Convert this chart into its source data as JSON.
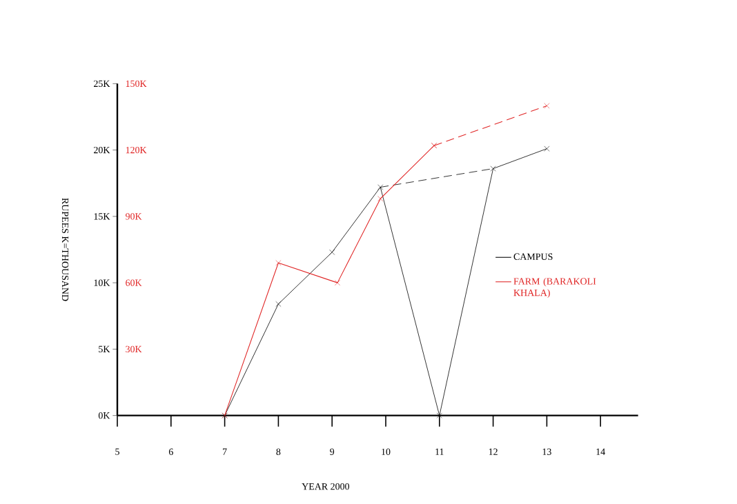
{
  "chart_data": {
    "type": "line",
    "xlabel": "YEAR 2000",
    "ylabel": "RUPEES  K=THOUSAND",
    "xlim": [
      5,
      14.7
    ],
    "xticks": [
      5,
      6,
      7,
      8,
      9,
      10,
      11,
      12,
      13,
      14
    ],
    "ylim": [
      0,
      25
    ],
    "yticks": [
      {
        "value": 0,
        "label": "0K"
      },
      {
        "value": 5,
        "label": "5K"
      },
      {
        "value": 10,
        "label": "10K"
      },
      {
        "value": 15,
        "label": "15K"
      },
      {
        "value": 20,
        "label": "20K"
      },
      {
        "value": 25,
        "label": "25K"
      }
    ],
    "y2lim": [
      0,
      150
    ],
    "y2ticks": [
      {
        "value": 30,
        "label": "30K"
      },
      {
        "value": 60,
        "label": "60K"
      },
      {
        "value": 90,
        "label": "90K"
      },
      {
        "value": 120,
        "label": "120K"
      },
      {
        "value": 150,
        "label": "150K"
      }
    ],
    "legend": "right",
    "grid": false,
    "series": [
      {
        "name": "CAMPUS",
        "color": "#000000",
        "x": [
          7,
          8,
          9,
          9.9,
          11,
          12,
          13
        ],
        "values": [
          0,
          8.4,
          12.3,
          17.2,
          0,
          18.6,
          20.1
        ],
        "marker": "cross",
        "line_style": "solid"
      },
      {
        "color": "#000000",
        "x": [
          9.9,
          12
        ],
        "values": [
          17.2,
          18.6
        ],
        "marker": "none",
        "line_style": "dashed"
      },
      {
        "name": "FARM (BARAKOLI KHALA)",
        "color": "#e02424",
        "axis": "y2",
        "x": [
          7,
          8,
          9.1,
          9.9,
          10.9
        ],
        "values": [
          0,
          69,
          60,
          98,
          122
        ],
        "marker": "cross",
        "line_style": "solid"
      },
      {
        "color": "#e02424",
        "axis": "y2",
        "x": [
          10.9,
          13
        ],
        "values": [
          122,
          140
        ],
        "marker": "cross",
        "line_style": "dashed"
      }
    ]
  }
}
